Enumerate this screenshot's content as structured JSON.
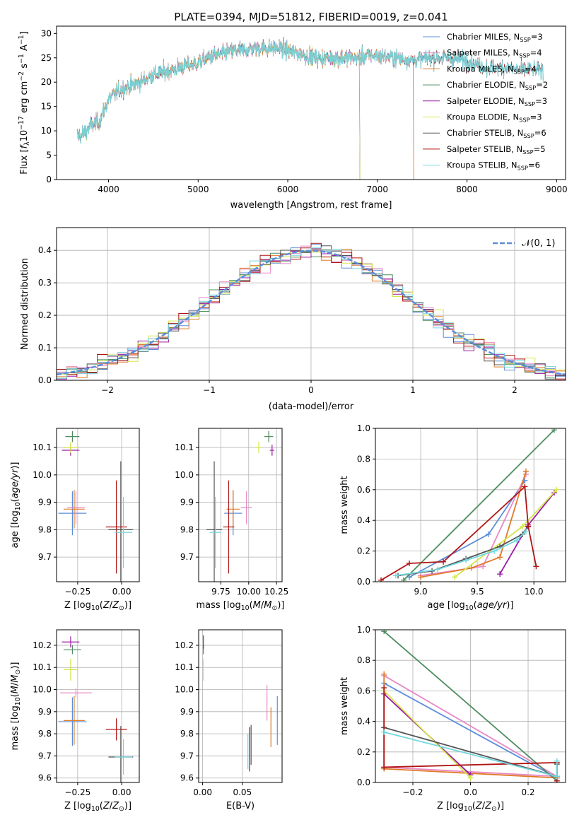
{
  "colors": {
    "Chabrier MILES": "#5b8ddb",
    "Salpeter MILES": "#e889c6",
    "Kroupa MILES": "#e07a27",
    "Chabrier ELODIE": "#4e8d5f",
    "Salpeter ELODIE": "#9a1ba3",
    "Kroupa ELODIE": "#d4e64a",
    "Chabrier STELIB": "#555555",
    "Salpeter STELIB": "#b01515",
    "Kroupa STELIB": "#72d8df"
  },
  "chart_data": [
    {
      "id": "spectrum",
      "type": "line",
      "title": "PLATE=0394, MJD=51812, FIBERID=0019, z=0.041",
      "xlabel": "wavelength [Angstrom, rest frame]",
      "ylabel": "Flux [f_λ10^-17 erg cm^-2 s^-1 A^-1]",
      "xlim": [
        3420,
        9100
      ],
      "ylim": [
        0,
        31.5
      ],
      "xticks": [
        4000,
        5000,
        6000,
        7000,
        8000,
        9000
      ],
      "yticks": [
        0,
        5,
        10,
        15,
        20,
        25,
        30
      ],
      "legend_position": "upper-right",
      "legend": [
        {
          "name": "Chabrier MILES",
          "label": "Chabrier MILES, N_SSP=3"
        },
        {
          "name": "Salpeter MILES",
          "label": "Salpeter MILES, N_SSP=4"
        },
        {
          "name": "Kroupa MILES",
          "label": "Kroupa MILES, N_SSP=4"
        },
        {
          "name": "Chabrier ELODIE",
          "label": "Chabrier ELODIE, N_SSP=2"
        },
        {
          "name": "Salpeter ELODIE",
          "label": "Salpeter ELODIE, N_SSP=3"
        },
        {
          "name": "Kroupa ELODIE",
          "label": "Kroupa ELODIE, N_SSP=3"
        },
        {
          "name": "Chabrier STELIB",
          "label": "Chabrier STELIB, N_SSP=6"
        },
        {
          "name": "Salpeter STELIB",
          "label": "Salpeter STELIB, N_SSP=5"
        },
        {
          "name": "Kroupa STELIB",
          "label": "Kroupa STELIB, N_SSP=6"
        }
      ],
      "continuum": {
        "x": [
          3700,
          3800,
          3900,
          4000,
          4100,
          4200,
          4300,
          4400,
          4500,
          4600,
          4700,
          4800,
          4900,
          5000,
          5100,
          5200,
          5300,
          5400,
          5500,
          5600,
          5700,
          5800,
          5900,
          6000,
          6100,
          6200,
          6300,
          6400,
          6500,
          6600,
          6700,
          6800,
          6900,
          7000,
          7200,
          7400,
          7600,
          7800,
          8000,
          8200,
          8400,
          8600,
          8850
        ],
        "y": [
          9,
          11,
          12,
          16.5,
          18,
          19,
          19.5,
          20.5,
          21.5,
          22,
          22.5,
          23,
          23.5,
          24,
          25,
          25.5,
          26,
          26.5,
          26.5,
          27,
          27,
          27,
          27,
          26.5,
          26,
          25.5,
          25,
          25,
          25,
          25,
          25,
          25,
          25.5,
          25.5,
          25,
          24.5,
          25,
          25,
          24.5,
          23,
          23,
          22.5,
          22.5
        ]
      },
      "model_range_end": {
        "Chabrier MILES": 7400,
        "Salpeter MILES": 7400,
        "Kroupa MILES": 7400,
        "Chabrier ELODIE": 6800,
        "Salpeter ELODIE": 6800,
        "Kroupa ELODIE": 6800,
        "Chabrier STELIB": 8850,
        "Salpeter STELIB": 8850,
        "Kroupa STELIB": 8850
      }
    },
    {
      "id": "residuals",
      "type": "line",
      "xlabel": "(data-model)/error",
      "ylabel": "Normed distribution",
      "xlim": [
        -2.5,
        2.5
      ],
      "ylim": [
        0,
        0.47
      ],
      "xticks": [
        -2,
        -1,
        0,
        1,
        2
      ],
      "yticks": [
        0.0,
        0.1,
        0.2,
        0.3,
        0.4
      ],
      "legend": [
        "𝒩(0, 1)"
      ],
      "legend_position": "upper-right",
      "grid": true,
      "bin_width": 0.1
    },
    {
      "id": "age_vs_Z",
      "type": "scatter",
      "xlabel": "Z [log10(Z/Z⊙)]",
      "ylabel": "age [log10(age/yr)]",
      "xlim": [
        -0.37,
        0.1
      ],
      "ylim": [
        9.61,
        10.17
      ],
      "xticks": [
        -0.25,
        0.0
      ],
      "yticks": [
        9.7,
        9.8,
        9.9,
        10.0,
        10.1
      ],
      "grid": true,
      "points": [
        {
          "series": "Chabrier MILES",
          "x": -0.28,
          "y": 9.86,
          "xerr": 0.08,
          "yerr": 0.08
        },
        {
          "series": "Salpeter MILES",
          "x": -0.26,
          "y": 9.88,
          "xerr": 0.05,
          "yerr": 0.06
        },
        {
          "series": "Kroupa MILES",
          "x": -0.27,
          "y": 9.875,
          "xerr": 0.06,
          "yerr": 0.07
        },
        {
          "series": "Chabrier ELODIE",
          "x": -0.28,
          "y": 10.14,
          "xerr": 0.04,
          "yerr": 0.02
        },
        {
          "series": "Salpeter ELODIE",
          "x": -0.29,
          "y": 10.09,
          "xerr": 0.05,
          "yerr": 0.02
        },
        {
          "series": "Kroupa ELODIE",
          "x": -0.29,
          "y": 10.1,
          "xerr": 0.04,
          "yerr": 0.02
        },
        {
          "series": "Chabrier STELIB",
          "x": -0.005,
          "y": 9.8,
          "xerr": 0.07,
          "yerr": 0.25
        },
        {
          "series": "Salpeter STELIB",
          "x": -0.03,
          "y": 9.81,
          "xerr": 0.06,
          "yerr": 0.17
        },
        {
          "series": "Kroupa STELIB",
          "x": 0.01,
          "y": 9.79,
          "xerr": 0.05,
          "yerr": 0.13
        }
      ]
    },
    {
      "id": "age_vs_mass",
      "type": "scatter",
      "xlabel": "mass [log10(M/M⊙)]",
      "ylabel": "",
      "xlim": [
        9.55,
        10.3
      ],
      "ylim": [
        9.61,
        10.17
      ],
      "xticks": [
        9.75,
        10.0,
        10.25
      ],
      "yticks": [
        9.7,
        9.8,
        9.9,
        10.0,
        10.1
      ],
      "grid": true,
      "points": [
        {
          "series": "Chabrier MILES",
          "x": 9.86,
          "y": 9.86,
          "xerr": 0.08,
          "yerr": 0.08
        },
        {
          "series": "Salpeter MILES",
          "x": 9.98,
          "y": 9.88,
          "xerr": 0.05,
          "yerr": 0.06
        },
        {
          "series": "Kroupa MILES",
          "x": 9.86,
          "y": 9.875,
          "xerr": 0.06,
          "yerr": 0.07
        },
        {
          "series": "Chabrier ELODIE",
          "x": 10.18,
          "y": 10.14,
          "xerr": 0.04,
          "yerr": 0.02
        },
        {
          "series": "Salpeter ELODIE",
          "x": 10.21,
          "y": 10.09,
          "xerr": 0.02,
          "yerr": 0.02
        },
        {
          "series": "Kroupa ELODIE",
          "x": 10.09,
          "y": 10.1,
          "xerr": 0.03,
          "yerr": 0.02
        },
        {
          "series": "Chabrier STELIB",
          "x": 9.69,
          "y": 9.8,
          "xerr": 0.07,
          "yerr": 0.25
        },
        {
          "series": "Salpeter STELIB",
          "x": 9.82,
          "y": 9.81,
          "xerr": 0.05,
          "yerr": 0.17
        },
        {
          "series": "Kroupa STELIB",
          "x": 9.7,
          "y": 9.79,
          "xerr": 0.05,
          "yerr": 0.13
        }
      ]
    },
    {
      "id": "weight_vs_age",
      "type": "line",
      "xlabel": "age [log10(age/yr)]",
      "ylabel": "mass weight",
      "xlim": [
        8.6,
        10.28
      ],
      "ylim": [
        0.0,
        1.0
      ],
      "xticks": [
        9.0,
        9.5,
        10.0
      ],
      "yticks": [
        0.0,
        0.2,
        0.4,
        0.6,
        0.8,
        1.0
      ],
      "grid": true,
      "series": [
        {
          "name": "Chabrier MILES",
          "x": [
            8.9,
            9.6,
            9.92
          ],
          "y": [
            0.03,
            0.31,
            0.66
          ]
        },
        {
          "name": "Salpeter MILES",
          "x": [
            9.0,
            9.55,
            9.93
          ],
          "y": [
            0.04,
            0.1,
            0.7
          ]
        },
        {
          "name": "Kroupa MILES",
          "x": [
            9.0,
            9.45,
            9.7,
            9.93
          ],
          "y": [
            0.03,
            0.09,
            0.16,
            0.72
          ]
        },
        {
          "name": "Chabrier ELODIE",
          "x": [
            8.85,
            10.18
          ],
          "y": [
            0.01,
            0.99
          ]
        },
        {
          "name": "Salpeter ELODIE",
          "x": [
            9.7,
            9.95,
            10.18
          ],
          "y": [
            0.05,
            0.37,
            0.58
          ]
        },
        {
          "name": "Kroupa ELODIE",
          "x": [
            9.3,
            9.9,
            10.2
          ],
          "y": [
            0.03,
            0.36,
            0.6
          ]
        },
        {
          "name": "Chabrier STELIB",
          "x": [
            8.8,
            9.1,
            9.4,
            9.7,
            9.9,
            9.95
          ],
          "y": [
            0.04,
            0.07,
            0.15,
            0.23,
            0.31,
            0.36
          ]
        },
        {
          "name": "Salpeter STELIB",
          "x": [
            8.65,
            8.9,
            9.2,
            9.92,
            9.95,
            10.02
          ],
          "y": [
            0.01,
            0.12,
            0.13,
            0.62,
            0.36,
            0.1
          ]
        },
        {
          "name": "Kroupa STELIB",
          "x": [
            8.78,
            9.15,
            9.4,
            9.65,
            9.85,
            9.93
          ],
          "y": [
            0.04,
            0.08,
            0.14,
            0.2,
            0.27,
            0.33
          ]
        }
      ]
    },
    {
      "id": "mass_vs_Z",
      "type": "scatter",
      "xlabel": "Z [log10(Z/Z⊙)]",
      "ylabel": "mass [log10(M/M⊙)]",
      "xlim": [
        -0.37,
        0.1
      ],
      "ylim": [
        9.58,
        10.27
      ],
      "xticks": [
        -0.25,
        0.0
      ],
      "yticks": [
        9.6,
        9.7,
        9.8,
        9.9,
        10.0,
        10.1,
        10.2
      ],
      "grid": true,
      "points": [
        {
          "series": "Chabrier MILES",
          "x": -0.28,
          "y": 9.855,
          "xerr": 0.08,
          "yerr": 0.11
        },
        {
          "series": "Salpeter MILES",
          "x": -0.26,
          "y": 9.985,
          "xerr": 0.09,
          "yerr": 0.02
        },
        {
          "series": "Kroupa MILES",
          "x": -0.27,
          "y": 9.86,
          "xerr": 0.06,
          "yerr": 0.11
        },
        {
          "series": "Chabrier ELODIE",
          "x": -0.28,
          "y": 10.18,
          "xerr": 0.05,
          "yerr": 0.02
        },
        {
          "series": "Salpeter ELODIE",
          "x": -0.29,
          "y": 10.215,
          "xerr": 0.05,
          "yerr": 0.025
        },
        {
          "series": "Kroupa ELODIE",
          "x": -0.29,
          "y": 10.09,
          "xerr": 0.04,
          "yerr": 0.05
        },
        {
          "series": "Chabrier STELIB",
          "x": -0.005,
          "y": 9.695,
          "xerr": 0.07,
          "yerr": 0.14
        },
        {
          "series": "Salpeter STELIB",
          "x": -0.03,
          "y": 9.82,
          "xerr": 0.06,
          "yerr": 0.05
        },
        {
          "series": "Kroupa STELIB",
          "x": 0.01,
          "y": 9.695,
          "xerr": 0.05,
          "yerr": 0.08
        }
      ]
    },
    {
      "id": "mass_vs_ebv",
      "type": "scatter",
      "xlabel": "E(B-V)",
      "ylabel": "",
      "xlim": [
        -0.005,
        0.1
      ],
      "ylim": [
        9.58,
        10.27
      ],
      "xticks": [
        0.0,
        0.05
      ],
      "yticks": [
        9.6,
        9.7,
        9.8,
        9.9,
        10.0,
        10.1,
        10.2
      ],
      "grid": true,
      "points": [
        {
          "series": "Chabrier MILES",
          "x": 0.094,
          "y": 9.86,
          "yerr": 0.11
        },
        {
          "series": "Salpeter MILES",
          "x": 0.081,
          "y": 9.94,
          "yerr": 0.08
        },
        {
          "series": "Kroupa MILES",
          "x": 0.086,
          "y": 9.83,
          "yerr": 0.09
        },
        {
          "series": "Chabrier ELODIE",
          "x": 0.001,
          "y": 10.18,
          "yerr": 0.02
        },
        {
          "series": "Salpeter ELODIE",
          "x": 0.001,
          "y": 10.215,
          "yerr": 0.03
        },
        {
          "series": "Kroupa ELODIE",
          "x": 0.001,
          "y": 10.09,
          "yerr": 0.05
        },
        {
          "series": "Chabrier STELIB",
          "x": 0.061,
          "y": 9.75,
          "yerr": 0.09
        },
        {
          "series": "Salpeter STELIB",
          "x": 0.059,
          "y": 9.73,
          "yerr": 0.1
        },
        {
          "series": "Kroupa STELIB",
          "x": 0.057,
          "y": 9.72,
          "yerr": 0.08
        }
      ]
    },
    {
      "id": "weight_vs_Z",
      "type": "line",
      "xlabel": "Z [log10(Z/Z⊙)]",
      "ylabel": "mass weight",
      "xlim": [
        -0.33,
        0.33
      ],
      "ylim": [
        0.0,
        1.0
      ],
      "xticks": [
        -0.2,
        0.0,
        0.2
      ],
      "yticks": [
        0.0,
        0.2,
        0.4,
        0.6,
        0.8,
        1.0
      ],
      "grid": true,
      "series": [
        {
          "name": "Chabrier MILES",
          "x": [
            -0.3,
            0.3
          ],
          "y": [
            0.65,
            0.03
          ]
        },
        {
          "name": "Salpeter MILES",
          "x": [
            -0.3,
            0.3,
            -0.3
          ],
          "y": [
            0.7,
            0.04,
            0.1
          ]
        },
        {
          "name": "Kroupa MILES",
          "x": [
            -0.3,
            -0.3,
            0.3
          ],
          "y": [
            0.71,
            0.09,
            0.03
          ]
        },
        {
          "name": "Chabrier ELODIE",
          "x": [
            -0.3,
            0.3
          ],
          "y": [
            0.99,
            0.01
          ]
        },
        {
          "name": "Salpeter ELODIE",
          "x": [
            -0.3,
            0.0
          ],
          "y": [
            0.58,
            0.05
          ]
        },
        {
          "name": "Kroupa ELODIE",
          "x": [
            -0.3,
            0.0
          ],
          "y": [
            0.6,
            0.03
          ]
        },
        {
          "name": "Chabrier STELIB",
          "x": [
            -0.3,
            0.3,
            0.3
          ],
          "y": [
            0.36,
            0.04,
            0.12
          ]
        },
        {
          "name": "Salpeter STELIB",
          "x": [
            -0.3,
            -0.3,
            0.3,
            0.3
          ],
          "y": [
            0.62,
            0.1,
            0.13,
            0.01
          ]
        },
        {
          "name": "Kroupa STELIB",
          "x": [
            -0.3,
            0.3,
            0.3
          ],
          "y": [
            0.33,
            0.04,
            0.14
          ]
        }
      ]
    }
  ]
}
